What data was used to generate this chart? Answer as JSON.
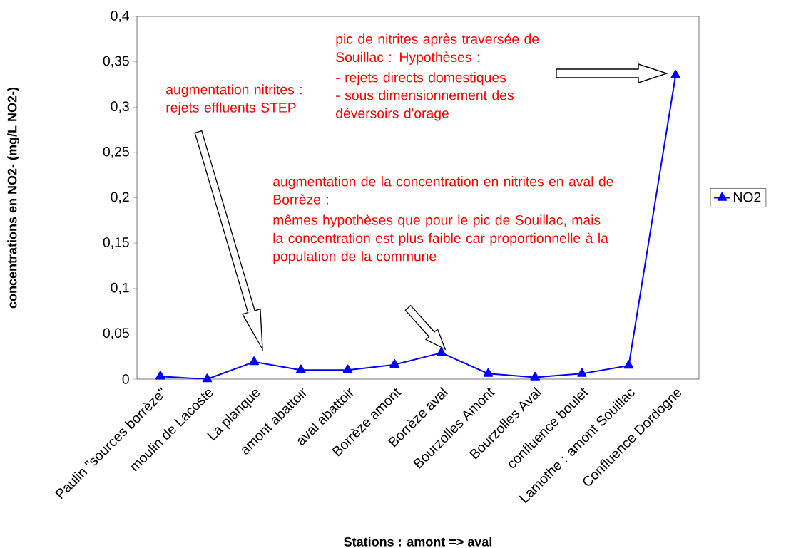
{
  "chart_data": {
    "type": "line",
    "xlabel": "Stations : amont => aval",
    "ylabel": "concentrations en NO2- (mg/L NO2-)",
    "categories": [
      "Paulin \"sources borrèze\"",
      "moulin de Lacoste",
      "La planque",
      "amont abattoir",
      "aval abattoir",
      "Borrèze amont",
      "Borrèze aval",
      "Bourzolles Amont",
      "Bourzolles Aval",
      "confluence boulet",
      "Lamothe : amont Souillac",
      "Confluence Dordogne"
    ],
    "series": [
      {
        "name": "NO2",
        "color": "#0000ff",
        "values": [
          0.003,
          0,
          0.019,
          0.01,
          0.01,
          0.016,
          0.029,
          0.006,
          0.002,
          0.006,
          0.015,
          0.335
        ]
      }
    ],
    "ylim": [
      0,
      0.4
    ],
    "yticks": [
      {
        "value": 0,
        "label": "0"
      },
      {
        "value": 0.05,
        "label": "0,05"
      },
      {
        "value": 0.1,
        "label": "0,1"
      },
      {
        "value": 0.15,
        "label": "0,15"
      },
      {
        "value": 0.2,
        "label": "0,2"
      },
      {
        "value": 0.25,
        "label": "0,25"
      },
      {
        "value": 0.3,
        "label": "0,3"
      },
      {
        "value": 0.35,
        "label": "0,35"
      },
      {
        "value": 0.4,
        "label": "0,4"
      }
    ],
    "grid": false,
    "legend": "right",
    "marker": "triangle",
    "line_style": "solid",
    "annotations": [
      "augmentation nitrites : rejets effluents STEP",
      "pic de nitrites après traversée de Souillac : Hypothèses :",
      "- rejets directs domestiques",
      "- sous dimensionnement des déversoirs d'orage",
      "augmentation de la concentration en nitrites en aval de Borrèze :",
      "mêmes hypothèses que pour le pic de Souillac, mais la concentration est plus faible car proportionnelle à la population de la commune"
    ]
  }
}
